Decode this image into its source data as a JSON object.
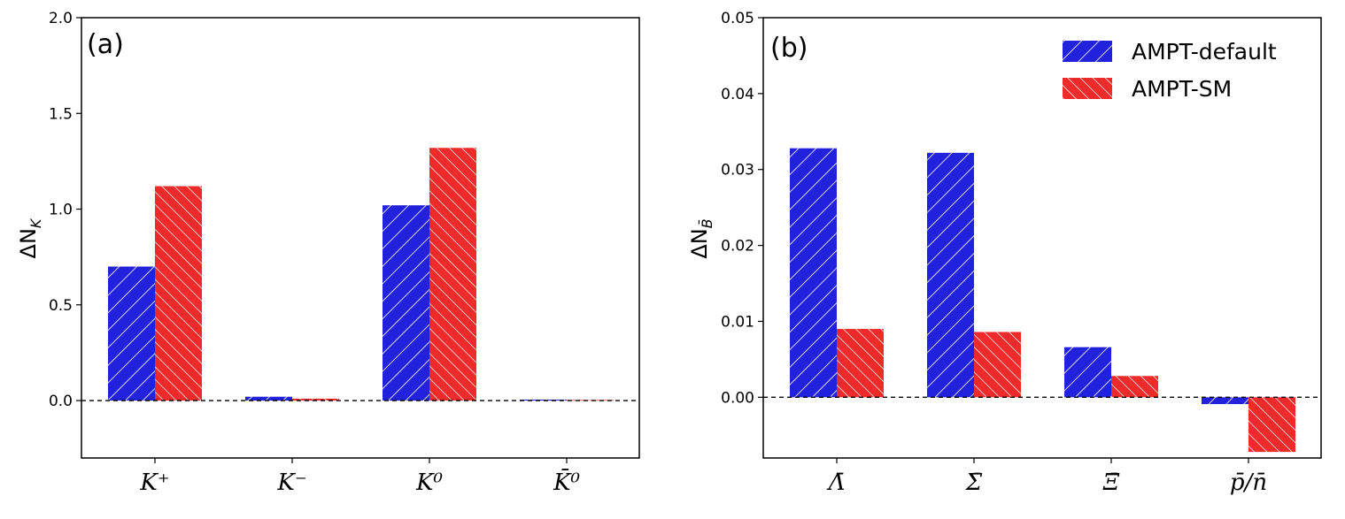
{
  "colors": {
    "blue": "#2222dd",
    "red": "#ee2a2a",
    "hatch": "#ffffff"
  },
  "legend": {
    "placement": "top-right",
    "entries": [
      "AMPT-default",
      "AMPT-SM"
    ]
  },
  "chart_data": [
    {
      "type": "bar",
      "panel_label": "(a)",
      "ylabel": "ΔN_K",
      "ylabel_main": "ΔN",
      "ylabel_sub": "K",
      "categories": [
        "K⁺",
        "K⁻",
        "K⁰",
        "K̄⁰"
      ],
      "ylim": [
        -0.3,
        2.0
      ],
      "yticks": [
        0.0,
        0.5,
        1.0,
        1.5,
        2.0
      ],
      "ytick_labels": [
        "0.0",
        "0.5",
        "1.0",
        "1.5",
        "2.0"
      ],
      "series": [
        {
          "name": "AMPT-default",
          "values": [
            0.7,
            0.02,
            1.02,
            0.005
          ]
        },
        {
          "name": "AMPT-SM",
          "values": [
            1.12,
            0.01,
            1.32,
            0.003
          ]
        }
      ],
      "reference_line": 0.0,
      "grid": false
    },
    {
      "type": "bar",
      "panel_label": "(b)",
      "ylabel": "ΔN_B̄",
      "ylabel_main": "ΔN",
      "ylabel_sub": "B̄",
      "categories": [
        "Λ̄",
        "Σ̄",
        "Ξ̄",
        "p̄/n̄"
      ],
      "ylim": [
        -0.008,
        0.05
      ],
      "yticks": [
        0.0,
        0.01,
        0.02,
        0.03,
        0.04,
        0.05
      ],
      "ytick_labels": [
        "0.00",
        "0.01",
        "0.02",
        "0.03",
        "0.04",
        "0.05"
      ],
      "series": [
        {
          "name": "AMPT-default",
          "values": [
            0.0328,
            0.0322,
            0.0066,
            -0.0009
          ]
        },
        {
          "name": "AMPT-SM",
          "values": [
            0.009,
            0.0086,
            0.0028,
            -0.0072
          ]
        }
      ],
      "reference_line": 0.0,
      "grid": false
    }
  ]
}
